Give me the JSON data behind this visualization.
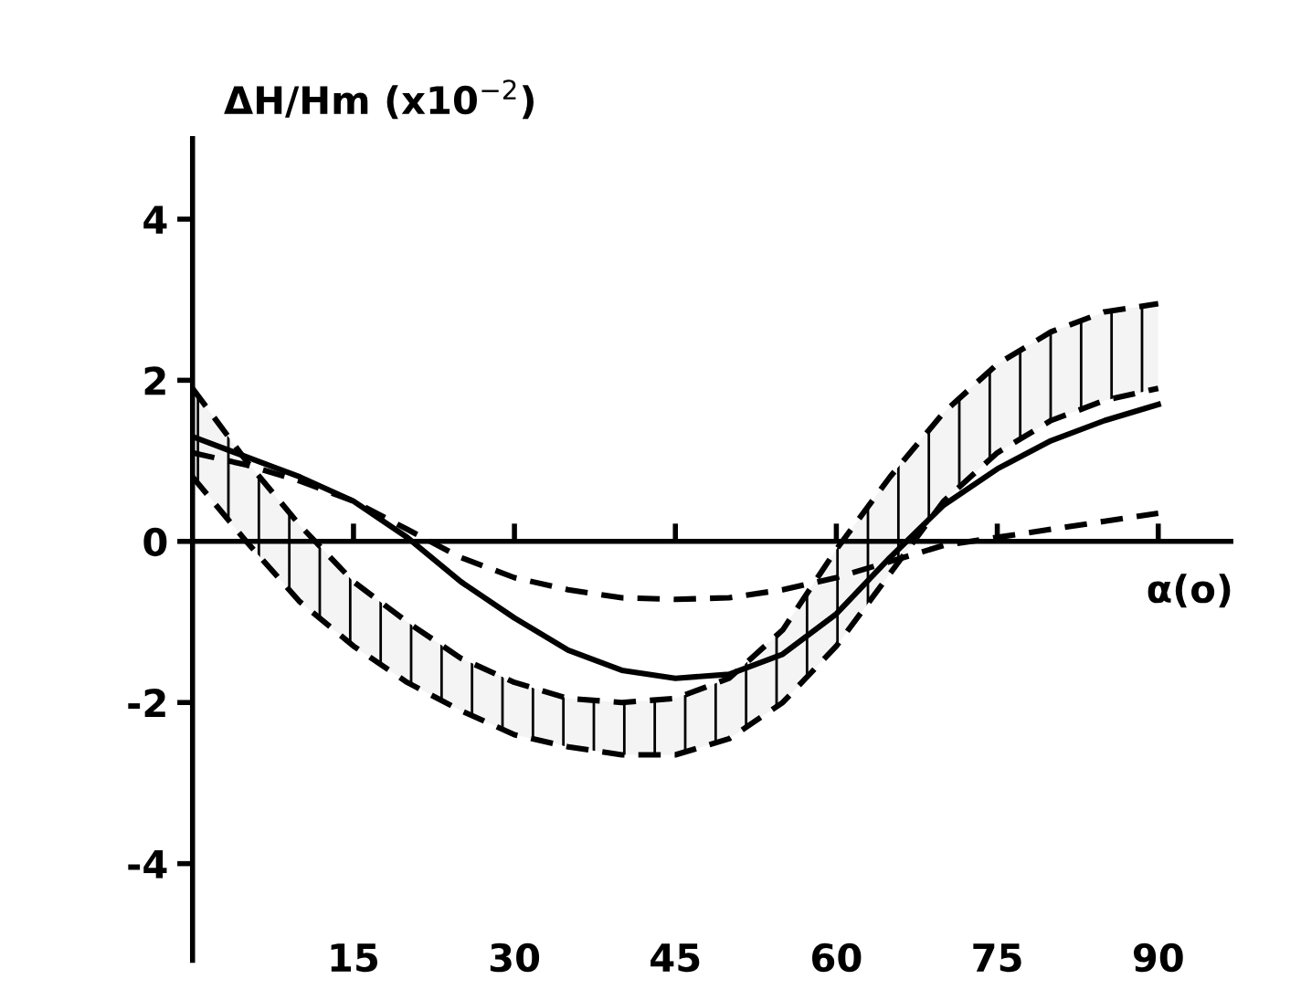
{
  "chart_data": {
    "type": "line",
    "ylabel": "ΔH/Hm (x10$^{−2}$)",
    "xlabel": "α(o)",
    "x": [
      0,
      5,
      10,
      15,
      20,
      25,
      30,
      35,
      40,
      45,
      50,
      55,
      60,
      65,
      70,
      75,
      80,
      85,
      90
    ],
    "xlim": [
      0,
      97
    ],
    "ylim": [
      -5.2,
      5
    ],
    "xticks": [
      15,
      30,
      45,
      60,
      75,
      90
    ],
    "yticks": [
      -4,
      -2,
      0,
      2,
      4
    ],
    "grid": false,
    "legend": false,
    "ref_lines": [
      {
        "axis": "y",
        "value": 0,
        "color": "#000000"
      }
    ],
    "series": [
      {
        "color": "#000000",
        "line_style": "solid",
        "values": [
          1.3,
          1.05,
          0.8,
          0.5,
          0.05,
          -0.5,
          -0.95,
          -1.35,
          -1.6,
          -1.7,
          -1.65,
          -1.4,
          -0.9,
          -0.2,
          0.45,
          0.9,
          1.25,
          1.5,
          1.7
        ]
      },
      {
        "color": "#000000",
        "line_style": "dashed",
        "values": [
          1.1,
          0.95,
          0.75,
          0.5,
          0.15,
          -0.2,
          -0.45,
          -0.6,
          -0.7,
          -0.72,
          -0.7,
          -0.6,
          -0.45,
          -0.25,
          -0.05,
          0.05,
          0.15,
          0.25,
          0.35
        ]
      },
      {
        "color": "#000000",
        "line_style": "dashed",
        "values": [
          1.9,
          1.0,
          0.2,
          -0.5,
          -1.0,
          -1.45,
          -1.75,
          -1.95,
          -2.0,
          -1.95,
          -1.7,
          -1.1,
          -0.1,
          0.8,
          1.6,
          2.2,
          2.6,
          2.85,
          2.95
        ],
        "upper": [
          1.9,
          1.0,
          0.2,
          -0.5,
          -1.0,
          -1.45,
          -1.75,
          -1.95,
          -2.0,
          -1.95,
          -1.7,
          -1.1,
          -0.1,
          0.8,
          1.6,
          2.2,
          2.6,
          2.85,
          2.95
        ],
        "lower": [
          0.8,
          0.0,
          -0.75,
          -1.3,
          -1.75,
          -2.1,
          -2.4,
          -2.55,
          -2.65,
          -2.65,
          -2.45,
          -2.0,
          -1.3,
          -0.4,
          0.5,
          1.1,
          1.5,
          1.75,
          1.9
        ]
      },
      {
        "color": "#000000",
        "line_style": "dashed",
        "values": [
          0.8,
          0.0,
          -0.75,
          -1.3,
          -1.75,
          -2.1,
          -2.4,
          -2.55,
          -2.65,
          -2.65,
          -2.45,
          -2.0,
          -1.3,
          -0.4,
          0.5,
          1.1,
          1.5,
          1.75,
          1.9
        ]
      }
    ]
  }
}
